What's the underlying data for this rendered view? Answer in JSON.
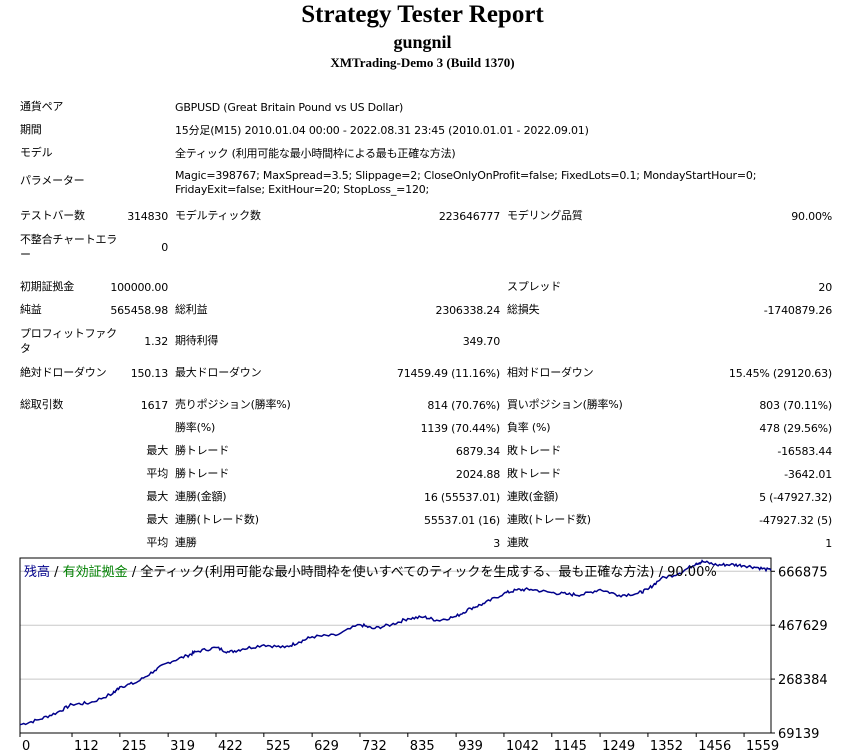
{
  "header": {
    "title": "Strategy Tester Report",
    "name": "gungnil",
    "server": "XMTrading-Demo 3 (Build 1370)"
  },
  "info": {
    "pair_label": "通貨ペア",
    "pair_value": "GBPUSD (Great Britain Pound vs US Dollar)",
    "period_label": "期間",
    "period_value": "15分足(M15) 2010.01.04 00:00 - 2022.08.31 23:45 (2010.01.01 - 2022.09.01)",
    "model_label": "モデル",
    "model_value": "全ティック (利用可能な最小時間枠による最も正確な方法)",
    "params_label": "パラメーター",
    "params_value": "Magic=398767; MaxSpread=3.5; Slippage=2; CloseOnlyOnProfit=false; FixedLots=0.1; MondayStartHour=0; FridayExit=false; ExitHour=20; StopLoss_=120;"
  },
  "stats": {
    "bars_label": "テストバー数",
    "bars_value": "314830",
    "ticks_label": "モデルティック数",
    "ticks_value": "223646777",
    "quality_label": "モデリング品質",
    "quality_value": "90.00%",
    "mismatch_label": "不整合チャートエラー",
    "mismatch_value": "0",
    "deposit_label": "初期証拠金",
    "deposit_value": "100000.00",
    "spread_label": "スプレッド",
    "spread_value": "20",
    "net_label": "純益",
    "net_value": "565458.98",
    "gross_profit_label": "総利益",
    "gross_profit_value": "2306338.24",
    "gross_loss_label": "総損失",
    "gross_loss_value": "-1740879.26",
    "pf_label": "プロフィットファクタ",
    "pf_value": "1.32",
    "expected_label": "期待利得",
    "expected_value": "349.70",
    "abs_dd_label": "絶対ドローダウン",
    "abs_dd_value": "150.13",
    "max_dd_label": "最大ドローダウン",
    "max_dd_value": "71459.49 (11.16%)",
    "rel_dd_label": "相対ドローダウン",
    "rel_dd_value": "15.45% (29120.63)",
    "total_trades_label": "総取引数",
    "total_trades_value": "1617",
    "short_label": "売りポジション(勝率%)",
    "short_value": "814 (70.76%)",
    "long_label": "買いポジション(勝率%)",
    "long_value": "803 (70.11%)",
    "win_rate_label": "勝率(%)",
    "win_rate_value": "1139 (70.44%)",
    "loss_rate_label": "負率 (%)",
    "loss_rate_value": "478 (29.56%)",
    "max_label": "最大",
    "avg_label": "平均",
    "largest_win_label": "勝トレード",
    "largest_win_value": "6879.34",
    "largest_loss_label": "敗トレード",
    "largest_loss_value": "-16583.44",
    "avg_win_label": "勝トレード",
    "avg_win_value": "2024.88",
    "avg_loss_label": "敗トレード",
    "avg_loss_value": "-3642.01",
    "max_consec_win_money_label": "連勝(金額)",
    "max_consec_win_money_value": "16 (55537.01)",
    "max_consec_loss_money_label": "連敗(金額)",
    "max_consec_loss_money_value": "5 (-47927.32)",
    "max_consec_win_count_label": "連勝(トレード数)",
    "max_consec_win_count_value": "55537.01 (16)",
    "max_consec_loss_count_label": "連敗(トレード数)",
    "max_consec_loss_count_value": "-47927.32 (5)",
    "avg_consec_win_label": "連勝",
    "avg_consec_win_value": "3",
    "avg_consec_loss_label": "連敗",
    "avg_consec_loss_value": "1"
  },
  "chart_data": {
    "type": "line",
    "legend": {
      "balance": "残高",
      "sep1": " / ",
      "equity": "有効証拠金",
      "rest": " / 全ティック(利用可能な最小時間枠を使いすべてのティックを生成する、最も正確な方法) / 90.00%"
    },
    "colors": {
      "balance": "#00008b",
      "equity": "#008000",
      "grid": "#c8c8c8",
      "border": "#000000"
    },
    "ylim": [
      69139,
      716000
    ],
    "y_ticks": [
      "666875",
      "467629",
      "268384",
      "69139"
    ],
    "y_tick_values": [
      666875,
      467629,
      268384,
      69139
    ],
    "xlim": [
      0,
      1617
    ],
    "x_ticks": [
      "0",
      "112",
      "215",
      "319",
      "422",
      "525",
      "629",
      "732",
      "835",
      "939",
      "1042",
      "1145",
      "1249",
      "1352",
      "1456",
      "1559"
    ],
    "x_tick_values": [
      0,
      112,
      215,
      319,
      422,
      525,
      629,
      732,
      835,
      939,
      1042,
      1145,
      1249,
      1352,
      1456,
      1559
    ],
    "series": [
      {
        "x": [
          0,
          40,
          80,
          112,
          150,
          200,
          215,
          250,
          290,
          319,
          360,
          380,
          422,
          450,
          480,
          525,
          570,
          600,
          629,
          680,
          732,
          760,
          800,
          835,
          870,
          900,
          939,
          970,
          1000,
          1042,
          1070,
          1100,
          1145,
          1180,
          1210,
          1249,
          1290,
          1330,
          1352,
          1380,
          1420,
          1456,
          1470,
          1500,
          1530,
          1559,
          1590,
          1617
        ],
        "values": [
          100000,
          118000,
          145000,
          175000,
          180000,
          215000,
          240000,
          255000,
          300000,
          330000,
          355000,
          370000,
          385000,
          368000,
          380000,
          395000,
          385000,
          405000,
          425000,
          430000,
          470000,
          455000,
          470000,
          492000,
          498000,
          485000,
          500000,
          530000,
          548000,
          585000,
          598000,
          600000,
          588000,
          582000,
          580000,
          600000,
          578000,
          585000,
          600000,
          640000,
          660000,
          696000,
          703000,
          690000,
          692000,
          688000,
          680000,
          670000
        ]
      }
    ]
  }
}
